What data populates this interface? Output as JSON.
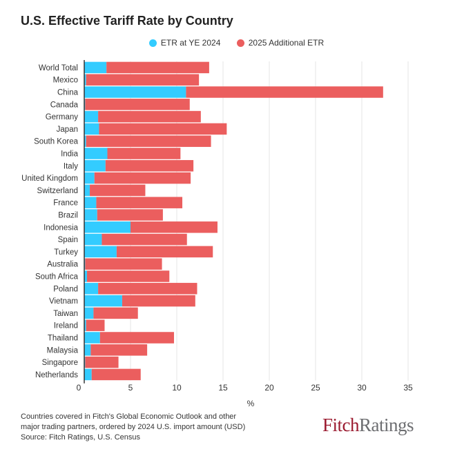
{
  "title": "U.S. Effective Tariff Rate by Country",
  "legend": [
    {
      "label": "ETR at YE 2024",
      "color": "#33ccff"
    },
    {
      "label": "2025 Additional ETR",
      "color": "#eb5e5e"
    }
  ],
  "colors": {
    "series1": "#33ccff",
    "series2": "#eb5e5e",
    "grid": "#e6e6e6",
    "axis": "#333333"
  },
  "chart_data": {
    "type": "bar",
    "orientation": "horizontal",
    "stacked": true,
    "categories": [
      "World Total",
      "Mexico",
      "China",
      "Canada",
      "Germany",
      "Japan",
      "South Korea",
      "India",
      "Italy",
      "United Kingdom",
      "Switzerland",
      "France",
      "Brazil",
      "Indonesia",
      "Spain",
      "Turkey",
      "Australia",
      "South Africa",
      "Poland",
      "Vietnam",
      "Taiwan",
      "Ireland",
      "Thailand",
      "Malaysia",
      "Singapore",
      "Netherlands"
    ],
    "series": [
      {
        "name": "ETR at YE 2024",
        "values": [
          2.4,
          0.2,
          11.0,
          0.1,
          1.5,
          1.6,
          0.2,
          2.5,
          2.3,
          1.1,
          0.6,
          1.3,
          1.4,
          5.0,
          1.9,
          3.5,
          0.1,
          0.3,
          1.5,
          4.1,
          1.0,
          0.2,
          1.7,
          0.7,
          0.1,
          0.8
        ]
      },
      {
        "name": "2025 Additional ETR",
        "values": [
          11.1,
          12.2,
          21.3,
          11.3,
          11.1,
          13.8,
          13.5,
          7.9,
          9.5,
          10.4,
          6.0,
          9.3,
          7.1,
          9.4,
          9.2,
          10.4,
          8.3,
          8.9,
          10.7,
          7.9,
          4.8,
          2.0,
          8.0,
          6.1,
          3.6,
          5.3
        ]
      }
    ],
    "xlabel": "%",
    "xlim": [
      0,
      36
    ],
    "xticks": [
      0,
      5,
      10,
      15,
      20,
      25,
      30,
      35
    ],
    "grid": true,
    "legend_position": "top"
  },
  "footnote": [
    "Countries covered in Fitch's Global Economic Outlook and other",
    "major trading partners, ordered by 2024 U.S.  import amount (USD)",
    "Source: Fitch Ratings, U.S. Census"
  ],
  "brand": {
    "part1": "Fitch",
    "part2": "Ratings"
  }
}
